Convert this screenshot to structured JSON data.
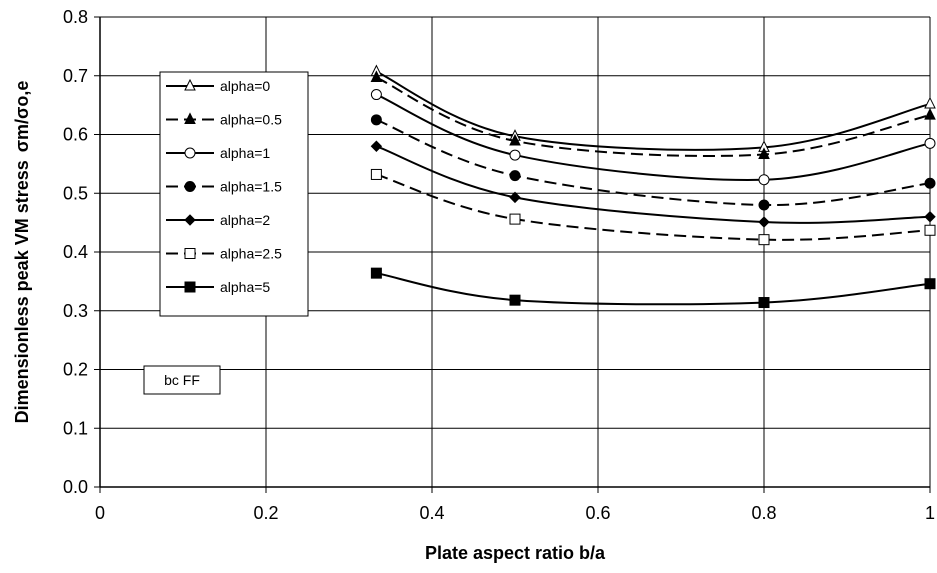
{
  "chart_data": {
    "type": "line",
    "title": "",
    "xlabel": "Plate aspect ratio   b/a",
    "ylabel": "Dimensionless peak VM stress",
    "ylabel_symbol": "σm/σo,e",
    "xlim": [
      0,
      1
    ],
    "ylim": [
      0,
      0.8
    ],
    "x_ticks": [
      "0",
      "0.2",
      "0.4",
      "0.6",
      "0.8",
      "1"
    ],
    "y_ticks": [
      "0.0",
      "0.1",
      "0.2",
      "0.3",
      "0.4",
      "0.5",
      "0.6",
      "0.7",
      "0.8"
    ],
    "x_tick_values": [
      0,
      0.2,
      0.4,
      0.6,
      0.8,
      1
    ],
    "y_tick_values": [
      0,
      0.1,
      0.2,
      0.3,
      0.4,
      0.5,
      0.6,
      0.7,
      0.8
    ],
    "grid": true,
    "legend_position": "upper-left",
    "annotation": "bc FF",
    "x": [
      0.333,
      0.5,
      0.8,
      1.0
    ],
    "series": [
      {
        "name": "alpha=0",
        "values": [
          0.707,
          0.597,
          0.578,
          0.652
        ],
        "marker": "triangle-open",
        "dash": "solid",
        "color": "#000000"
      },
      {
        "name": "alpha=0.5",
        "values": [
          0.697,
          0.589,
          0.566,
          0.633
        ],
        "marker": "triangle-filled",
        "dash": "dashed",
        "color": "#000000"
      },
      {
        "name": "alpha=1",
        "values": [
          0.668,
          0.565,
          0.523,
          0.585
        ],
        "marker": "circle-open",
        "dash": "solid",
        "color": "#000000"
      },
      {
        "name": "alpha=1.5",
        "values": [
          0.625,
          0.53,
          0.48,
          0.517
        ],
        "marker": "circle-filled",
        "dash": "dashed",
        "color": "#000000"
      },
      {
        "name": "alpha=2",
        "values": [
          0.58,
          0.493,
          0.451,
          0.46
        ],
        "marker": "diamond-filled",
        "dash": "solid",
        "color": "#000000"
      },
      {
        "name": "alpha=2.5",
        "values": [
          0.532,
          0.456,
          0.421,
          0.437
        ],
        "marker": "square-open",
        "dash": "dashed",
        "color": "#000000"
      },
      {
        "name": "alpha=5",
        "values": [
          0.364,
          0.318,
          0.314,
          0.346
        ],
        "marker": "square-filled",
        "dash": "solid",
        "color": "#000000"
      }
    ]
  }
}
